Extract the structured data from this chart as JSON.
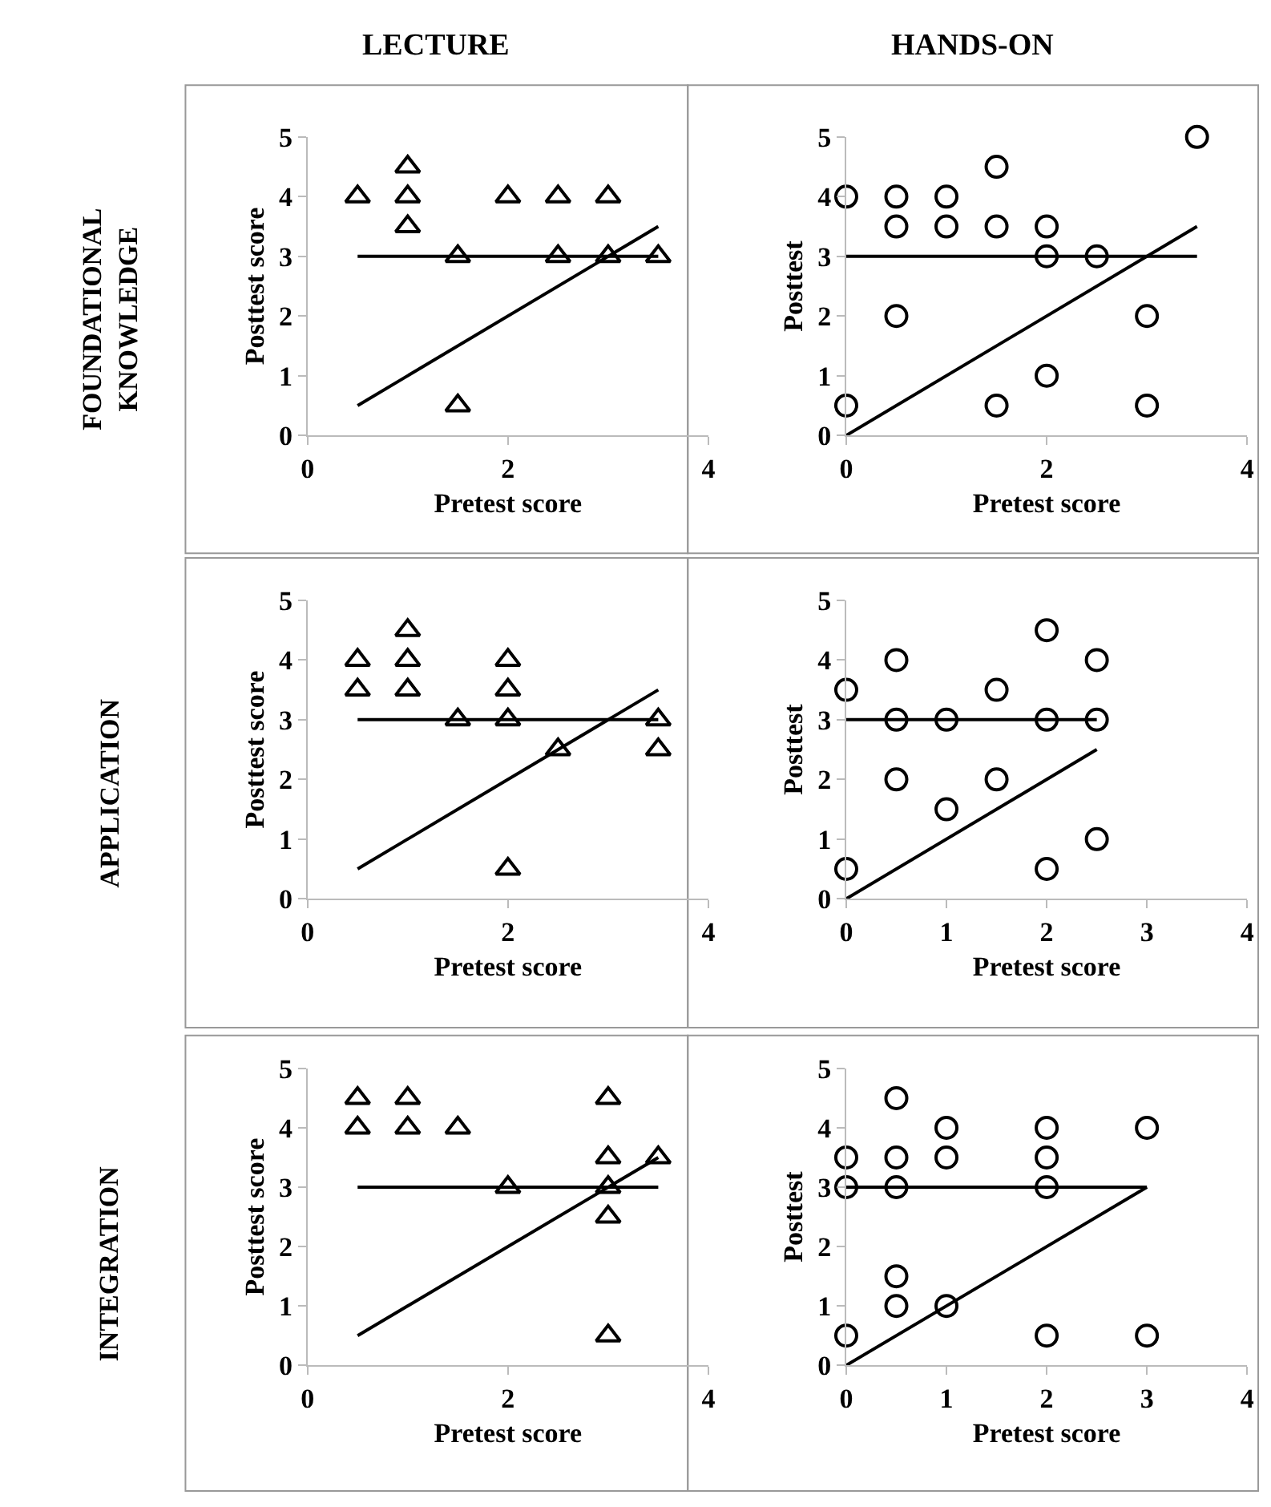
{
  "chart_data": [
    {
      "type": "scatter",
      "title": "LECTURE",
      "annotations": [
        "FOUNDATIONAL\nKNOWLEDGE"
      ],
      "xlabel": "Pretest score",
      "ylabel": "Posttest score",
      "xlim": [
        0,
        4
      ],
      "xticks": [
        0,
        2,
        4
      ],
      "ylim": [
        0,
        5
      ],
      "yticks": [
        0,
        1,
        2,
        3,
        4,
        5
      ],
      "series": [
        {
          "marker": "triangle",
          "color": "#000000",
          "x": [
            0.5,
            1,
            1,
            1,
            1.5,
            1.5,
            2,
            2.5,
            2.5,
            3,
            3,
            3.5
          ],
          "values": [
            4,
            4.5,
            4,
            3.5,
            3,
            0.5,
            4,
            4,
            3,
            4,
            3,
            3
          ]
        },
        {
          "type": "line",
          "marker": "none",
          "color": "#000000",
          "x": [
            0.5,
            3.5
          ],
          "values": [
            3,
            3
          ]
        },
        {
          "type": "line",
          "marker": "none",
          "color": "#000000",
          "x": [
            0.5,
            3.5
          ],
          "values": [
            0.5,
            3.5
          ]
        }
      ]
    },
    {
      "type": "scatter",
      "title": "HANDS-ON",
      "xlabel": "Pretest score",
      "ylabel": "Posttest",
      "xlim": [
        0,
        4
      ],
      "xticks": [
        0,
        2,
        4
      ],
      "ylim": [
        0,
        5
      ],
      "yticks": [
        0,
        1,
        2,
        3,
        4,
        5
      ],
      "series": [
        {
          "marker": "circle",
          "color": "#000000",
          "x": [
            0,
            0,
            0.5,
            0.5,
            0.5,
            1,
            1,
            1.5,
            1.5,
            1.5,
            2,
            2,
            2,
            2.5,
            3,
            3,
            3.5
          ],
          "values": [
            4,
            0.5,
            4,
            3.5,
            2,
            4,
            3.5,
            4.5,
            3.5,
            0.5,
            3.5,
            3,
            1,
            3,
            2,
            0.5,
            5
          ]
        },
        {
          "type": "line",
          "marker": "none",
          "color": "#000000",
          "x": [
            0,
            3.5
          ],
          "values": [
            3,
            3
          ]
        },
        {
          "type": "line",
          "marker": "none",
          "color": "#000000",
          "x": [
            0,
            3.5
          ],
          "values": [
            0,
            3.5
          ]
        }
      ]
    },
    {
      "type": "scatter",
      "annotations": [
        "APPLICATION"
      ],
      "xlabel": "Pretest score",
      "ylabel": "Posttest score",
      "xlim": [
        0,
        4
      ],
      "xticks": [
        0,
        2,
        4
      ],
      "ylim": [
        0,
        5
      ],
      "yticks": [
        0,
        1,
        2,
        3,
        4,
        5
      ],
      "series": [
        {
          "marker": "triangle",
          "color": "#000000",
          "x": [
            0.5,
            0.5,
            1,
            1,
            1,
            1.5,
            2,
            2,
            2,
            2,
            2.5,
            3.5,
            3.5
          ],
          "values": [
            4,
            3.5,
            4.5,
            4,
            3.5,
            3,
            4,
            3.5,
            3,
            0.5,
            2.5,
            3,
            2.5
          ]
        },
        {
          "type": "line",
          "marker": "none",
          "color": "#000000",
          "x": [
            0.5,
            3.5
          ],
          "values": [
            3,
            3
          ]
        },
        {
          "type": "line",
          "marker": "none",
          "color": "#000000",
          "x": [
            0.5,
            3.5
          ],
          "values": [
            0.5,
            3.5
          ]
        }
      ]
    },
    {
      "type": "scatter",
      "xlabel": "Pretest score",
      "ylabel": "Posttest",
      "xlim": [
        0,
        4
      ],
      "xticks": [
        0,
        1,
        2,
        3,
        4
      ],
      "ylim": [
        0,
        5
      ],
      "yticks": [
        0,
        1,
        2,
        3,
        4,
        5
      ],
      "series": [
        {
          "marker": "circle",
          "color": "#000000",
          "x": [
            0,
            0,
            0.5,
            0.5,
            0.5,
            1,
            1,
            1.5,
            1.5,
            2,
            2,
            2,
            2.5,
            2.5,
            2.5
          ],
          "values": [
            3.5,
            0.5,
            4,
            3,
            2,
            3,
            1.5,
            3.5,
            2,
            4.5,
            3,
            0.5,
            4,
            3,
            1
          ]
        },
        {
          "type": "line",
          "marker": "none",
          "color": "#000000",
          "x": [
            0,
            2.5
          ],
          "values": [
            3,
            3
          ]
        },
        {
          "type": "line",
          "marker": "none",
          "color": "#000000",
          "x": [
            0,
            2.5
          ],
          "values": [
            0,
            2.5
          ]
        }
      ]
    },
    {
      "type": "scatter",
      "annotations": [
        "INTEGRATION"
      ],
      "xlabel": "Pretest score",
      "ylabel": "Posttest score",
      "xlim": [
        0,
        4
      ],
      "xticks": [
        0,
        2,
        4
      ],
      "ylim": [
        0,
        5
      ],
      "yticks": [
        0,
        1,
        2,
        3,
        4,
        5
      ],
      "series": [
        {
          "marker": "triangle",
          "color": "#000000",
          "x": [
            0.5,
            0.5,
            1,
            1,
            1.5,
            2,
            3,
            3,
            3,
            3,
            3,
            3.5
          ],
          "values": [
            4.5,
            4,
            4.5,
            4,
            4,
            3,
            4.5,
            3.5,
            3,
            2.5,
            0.5,
            3.5
          ]
        },
        {
          "type": "line",
          "marker": "none",
          "color": "#000000",
          "x": [
            0.5,
            3.5
          ],
          "values": [
            3,
            3
          ]
        },
        {
          "type": "line",
          "marker": "none",
          "color": "#000000",
          "x": [
            0.5,
            3.5
          ],
          "values": [
            0.5,
            3.5
          ]
        }
      ]
    },
    {
      "type": "scatter",
      "xlabel": "Pretest score",
      "ylabel": "Posttest",
      "xlim": [
        0,
        4
      ],
      "xticks": [
        0,
        1,
        2,
        3,
        4
      ],
      "ylim": [
        0,
        5
      ],
      "yticks": [
        0,
        1,
        2,
        3,
        4,
        5
      ],
      "series": [
        {
          "marker": "circle",
          "color": "#000000",
          "x": [
            0,
            0,
            0,
            0.5,
            0.5,
            0.5,
            0.5,
            0.5,
            1,
            1,
            1,
            2,
            2,
            2,
            2,
            3,
            3
          ],
          "values": [
            3.5,
            3,
            0.5,
            4.5,
            3.5,
            3,
            1.5,
            1,
            4,
            3.5,
            1,
            4,
            3.5,
            3,
            0.5,
            4,
            0.5
          ]
        },
        {
          "type": "line",
          "marker": "none",
          "color": "#000000",
          "x": [
            0,
            3
          ],
          "values": [
            3,
            3
          ]
        },
        {
          "type": "line",
          "marker": "none",
          "color": "#000000",
          "x": [
            0,
            3
          ],
          "values": [
            0,
            3
          ]
        }
      ]
    }
  ]
}
